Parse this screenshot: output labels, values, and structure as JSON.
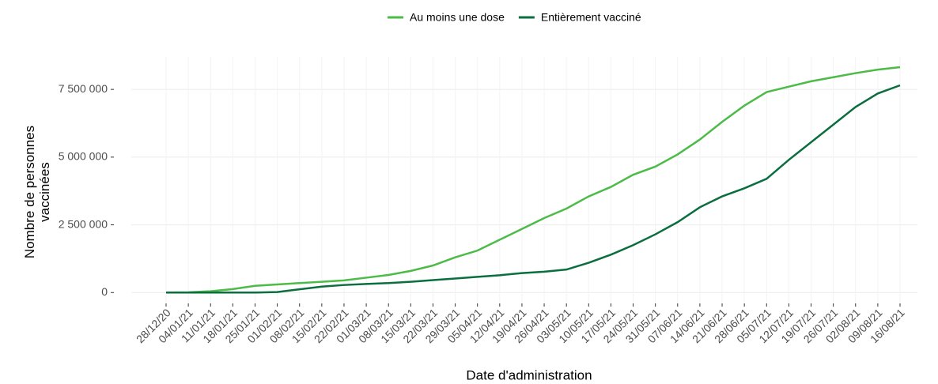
{
  "chart_data": {
    "type": "line",
    "xlabel": "Date d'administration",
    "ylabel": "Nombre de personnes vaccinées",
    "categories": [
      "28/12/20",
      "04/01/21",
      "11/01/21",
      "18/01/21",
      "25/01/21",
      "01/02/21",
      "08/02/21",
      "15/02/21",
      "22/02/21",
      "01/03/21",
      "08/03/21",
      "15/03/21",
      "22/03/21",
      "29/03/21",
      "05/04/21",
      "12/04/21",
      "19/04/21",
      "26/04/21",
      "03/05/21",
      "10/05/21",
      "17/05/21",
      "24/05/21",
      "31/05/21",
      "07/06/21",
      "14/06/21",
      "21/06/21",
      "28/06/21",
      "05/07/21",
      "12/07/21",
      "19/07/21",
      "26/07/21",
      "02/08/21",
      "09/08/21",
      "16/08/21"
    ],
    "series": [
      {
        "name": "Au moins une dose",
        "color": "#4cbb47",
        "values": [
          0,
          10000,
          50000,
          130000,
          250000,
          300000,
          350000,
          400000,
          450000,
          550000,
          650000,
          800000,
          1000000,
          1300000,
          1550000,
          1950000,
          2350000,
          2750000,
          3100000,
          3550000,
          3900000,
          4350000,
          4650000,
          5100000,
          5650000,
          6300000,
          6900000,
          7400000,
          7600000,
          7800000,
          7950000,
          8100000,
          8230000,
          8320000
        ]
      },
      {
        "name": "Entièrement vacciné",
        "color": "#0b6e3f",
        "values": [
          0,
          0,
          0,
          0,
          0,
          20000,
          120000,
          220000,
          280000,
          320000,
          350000,
          400000,
          460000,
          520000,
          580000,
          640000,
          720000,
          770000,
          850000,
          1100000,
          1400000,
          1750000,
          2150000,
          2600000,
          3150000,
          3550000,
          3850000,
          4200000,
          4900000,
          5550000,
          6200000,
          6850000,
          7350000,
          7650000
        ]
      }
    ],
    "ylim": [
      -400000,
      8700000
    ],
    "yticks": [
      0,
      {
        "value": 2500000,
        "label": "2 500 000"
      },
      {
        "value": 5000000,
        "label": "5 000 000"
      },
      {
        "value": 7500000,
        "label": "7 500 000"
      }
    ],
    "grid": true,
    "legend": "top"
  }
}
